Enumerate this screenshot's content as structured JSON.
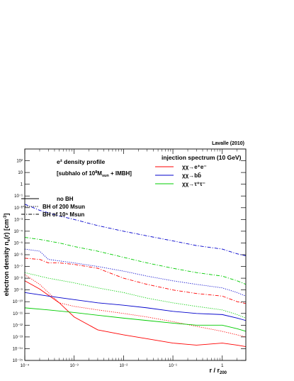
{
  "chart_data": {
    "type": "line",
    "x_scale": "log",
    "y_scale": "log",
    "xlim": [
      0.0001,
      3
    ],
    "ylim": [
      1e-15,
      1000
    ],
    "corner_note": "Lavalle (2010)",
    "title_line1": "e± density profile",
    "title_line2": "[subhalo of 10^8 Msun + IMBH]",
    "xlabel": "r / r200",
    "ylabel": "electron density n_e(r) [cm^-3]",
    "x_ticks": [
      {
        "value": 0.0001,
        "label": "10⁻⁴"
      },
      {
        "value": 0.001,
        "label": "10⁻³"
      },
      {
        "value": 0.01,
        "label": "10⁻²"
      },
      {
        "value": 0.1,
        "label": "10⁻¹"
      },
      {
        "value": 1,
        "label": "1"
      }
    ],
    "y_ticks": [
      {
        "value": 100,
        "label": "10²"
      },
      {
        "value": 10,
        "label": "10"
      },
      {
        "value": 1,
        "label": "1"
      },
      {
        "value": 0.1,
        "label": "10⁻¹"
      },
      {
        "value": 0.01,
        "label": "10⁻²"
      },
      {
        "value": 0.001,
        "label": "10⁻³"
      },
      {
        "value": 0.0001,
        "label": "10⁻⁴"
      },
      {
        "value": 1e-05,
        "label": "10⁻⁵"
      },
      {
        "value": 1e-06,
        "label": "10⁻⁶"
      },
      {
        "value": 1e-07,
        "label": "10⁻⁷"
      },
      {
        "value": 1e-08,
        "label": "10⁻⁸"
      },
      {
        "value": 1e-09,
        "label": "10⁻⁹"
      },
      {
        "value": 1e-10,
        "label": "10⁻¹⁰"
      },
      {
        "value": 1e-11,
        "label": "10⁻¹¹"
      },
      {
        "value": 1e-12,
        "label": "10⁻¹²"
      },
      {
        "value": 1e-13,
        "label": "10⁻¹³"
      },
      {
        "value": 1e-14,
        "label": "10⁻¹⁴"
      },
      {
        "value": 1e-15,
        "label": "10⁻¹⁵"
      }
    ],
    "legend_spectrum": {
      "title": "injection spectrum (10 GeV)",
      "entries": [
        {
          "label": "χχ→e⁺e⁻",
          "color": "#ff0000"
        },
        {
          "label": "χχ→bb̄",
          "color": "#0000cc"
        },
        {
          "label": "χχ→τ⁺τ⁻",
          "color": "#00cc00"
        }
      ]
    },
    "legend_bh": [
      {
        "label": "no BH",
        "dash": "solid"
      },
      {
        "label": "BH of 200 Msun",
        "dash": "dotted"
      },
      {
        "label": "BH of 10⁵ Msun",
        "dash": "dashdot"
      }
    ],
    "series": [
      {
        "channel": "e+e-",
        "bh": "none",
        "color": "#ff0000",
        "dash": "solid",
        "x": [
          0.0001,
          0.0002,
          0.0005,
          0.001,
          0.003,
          0.01,
          0.03,
          0.1,
          0.3,
          1,
          2,
          3
        ],
        "y": [
          6e-09,
          1.2e-09,
          8e-11,
          5e-12,
          4e-13,
          1.5e-13,
          7e-14,
          3e-14,
          2e-14,
          3e-14,
          2e-14,
          1.5e-14
        ]
      },
      {
        "channel": "e+e-",
        "bh": "200 Msun",
        "color": "#ff0000",
        "dash": "dotted",
        "x": [
          0.0001,
          0.0002,
          0.0005,
          0.001,
          0.003,
          0.01,
          0.03,
          0.1,
          0.3,
          1,
          2,
          3
        ],
        "y": [
          2e-08,
          3e-09,
          8e-11,
          4e-11,
          2e-11,
          1e-11,
          5e-12,
          2e-12,
          8e-13,
          3e-13,
          1.5e-13,
          1e-13
        ]
      },
      {
        "channel": "e+e-",
        "bh": "1e5 Msun",
        "color": "#ff0000",
        "dash": "dashdot",
        "x": [
          0.0001,
          0.0002,
          0.0003,
          0.0005,
          0.001,
          0.003,
          0.01,
          0.03,
          0.1,
          0.3,
          1,
          2,
          3
        ],
        "y": [
          5e-07,
          4e-07,
          2e-07,
          2e-07,
          1.5e-07,
          7e-08,
          1e-08,
          3e-09,
          1e-09,
          5e-10,
          3e-10,
          1e-10,
          7e-11
        ]
      },
      {
        "channel": "bb",
        "bh": "none",
        "color": "#0000cc",
        "dash": "solid",
        "x": [
          0.0001,
          0.0003,
          0.001,
          0.003,
          0.01,
          0.03,
          0.1,
          0.3,
          1,
          2,
          3
        ],
        "y": [
          6e-10,
          3e-10,
          1.5e-10,
          8e-11,
          5e-11,
          3e-11,
          1.5e-11,
          1e-11,
          8e-12,
          4e-12,
          2.5e-12
        ]
      },
      {
        "channel": "bb",
        "bh": "200 Msun",
        "color": "#0000cc",
        "dash": "dotted",
        "x": [
          0.0001,
          0.0002,
          0.0003,
          0.001,
          0.003,
          0.01,
          0.03,
          0.1,
          0.3,
          1,
          2,
          3
        ],
        "y": [
          3e-06,
          2e-06,
          4e-07,
          2e-07,
          1e-07,
          4e-08,
          1.5e-08,
          6e-09,
          3e-09,
          1.5e-09,
          6e-10,
          3e-10
        ]
      },
      {
        "channel": "bb",
        "bh": "1e5 Msun",
        "color": "#0000cc",
        "dash": "dashdot",
        "x": [
          0.0001,
          0.0002,
          0.0005,
          0.001,
          0.003,
          0.01,
          0.03,
          0.1,
          0.3,
          1,
          2,
          3
        ],
        "y": [
          0.02,
          0.006,
          0.002,
          0.001,
          0.0003,
          0.0001,
          4e-05,
          1.5e-05,
          6e-06,
          3e-06,
          1.2e-06,
          8e-07
        ]
      },
      {
        "channel": "tautau",
        "bh": "none",
        "color": "#00cc00",
        "dash": "solid",
        "x": [
          0.0001,
          0.0003,
          0.001,
          0.003,
          0.01,
          0.03,
          0.1,
          0.3,
          1,
          2,
          3
        ],
        "y": [
          3e-11,
          2e-11,
          1.2e-11,
          7e-12,
          4e-12,
          2.5e-12,
          1.5e-12,
          1e-12,
          1e-12,
          5e-13,
          3e-13
        ]
      },
      {
        "channel": "tautau",
        "bh": "200 Msun",
        "color": "#00cc00",
        "dash": "dotted",
        "x": [
          0.0001,
          0.0003,
          0.001,
          0.003,
          0.01,
          0.03,
          0.1,
          0.3,
          1,
          2,
          3
        ],
        "y": [
          3e-08,
          1e-08,
          4e-09,
          1.5e-09,
          6e-10,
          2e-10,
          8e-11,
          4e-11,
          2e-11,
          8e-12,
          4e-12
        ]
      },
      {
        "channel": "tautau",
        "bh": "1e5 Msun",
        "color": "#00cc00",
        "dash": "dashdot",
        "x": [
          0.0001,
          0.0002,
          0.0005,
          0.001,
          0.003,
          0.01,
          0.03,
          0.1,
          0.3,
          1,
          2,
          3
        ],
        "y": [
          3e-05,
          2e-05,
          1e-05,
          5e-06,
          2e-06,
          6e-07,
          2e-07,
          7e-08,
          3e-08,
          1.5e-08,
          6e-09,
          3e-09
        ]
      }
    ]
  }
}
